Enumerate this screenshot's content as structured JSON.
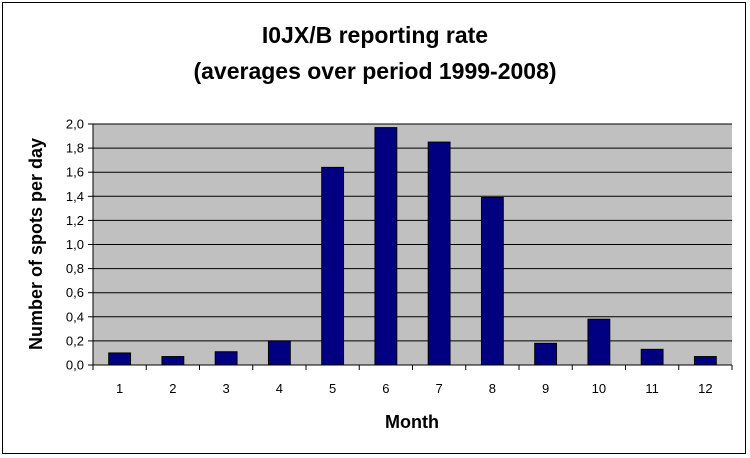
{
  "chart_data": {
    "type": "bar",
    "title_line1": "I0JX/B reporting rate",
    "title_line2": "(averages over period 1999-2008)",
    "xlabel": "Month",
    "ylabel": "Number of spots per day",
    "categories": [
      "1",
      "2",
      "3",
      "4",
      "5",
      "6",
      "7",
      "8",
      "9",
      "10",
      "11",
      "12"
    ],
    "values": [
      0.1,
      0.07,
      0.11,
      0.2,
      1.64,
      1.97,
      1.85,
      1.39,
      0.18,
      0.38,
      0.13,
      0.07
    ],
    "ylim": [
      0,
      2.0
    ],
    "yticks": [
      "0,0",
      "0,2",
      "0,4",
      "0,6",
      "0,8",
      "1,0",
      "1,2",
      "1,4",
      "1,6",
      "1,8",
      "2,0"
    ],
    "grid": true,
    "colors": {
      "bar": "#000080",
      "plot_background": "#c0c0c0",
      "grid": "#000000"
    }
  }
}
